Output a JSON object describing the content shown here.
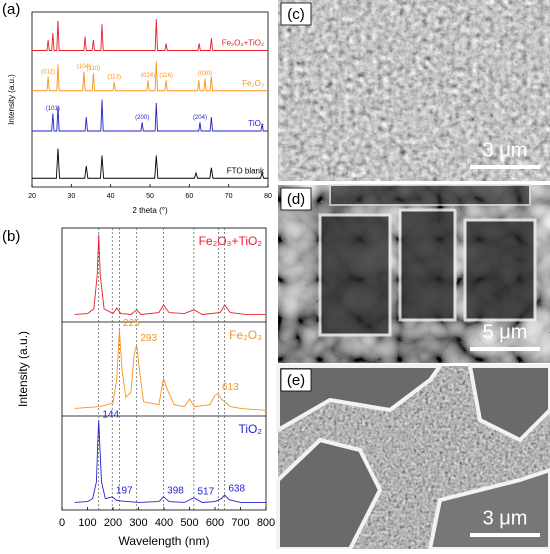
{
  "chart_data": [
    {
      "type": "line",
      "label": "(a)",
      "x_label": "2 theta (°)",
      "y_label": "Intensity (a.u.)",
      "xlim": [
        20,
        80
      ],
      "xticks": [
        20,
        30,
        40,
        50,
        60,
        70,
        80
      ],
      "ylim": [
        0,
        100
      ],
      "series": [
        {
          "name": "FTO blank",
          "color": "#000000",
          "x": [
            20,
            26.2,
            26.6,
            27,
            33.4,
            33.8,
            34.2,
            37.4,
            37.8,
            38.2,
            51.2,
            51.6,
            52,
            61.3,
            61.7,
            62.1,
            65.2,
            65.6,
            66,
            78.1,
            78.5,
            78.9,
            80
          ],
          "values": [
            5,
            5,
            22,
            5,
            5,
            12,
            5,
            5,
            18,
            5,
            5,
            18,
            5,
            5,
            8,
            5,
            5,
            11,
            5,
            5,
            8,
            5,
            5
          ],
          "annotations": []
        },
        {
          "name": "TiO₂",
          "color": "#2323d0",
          "x": [
            20,
            25,
            25.3,
            25.6,
            26.3,
            26.6,
            26.9,
            33.5,
            33.8,
            34.1,
            37.5,
            37.8,
            38.1,
            47.7,
            48,
            48.3,
            51.3,
            51.6,
            51.9,
            62.4,
            62.7,
            63,
            65.3,
            65.6,
            65.9,
            78.2,
            78.5,
            78.8,
            80
          ],
          "values": [
            32,
            32,
            42,
            32,
            32,
            46,
            32,
            32,
            40,
            32,
            32,
            50,
            32,
            32,
            37,
            32,
            32,
            48,
            32,
            32,
            37,
            32,
            32,
            40,
            32,
            32,
            36,
            32,
            32
          ],
          "annotations": [
            {
              "x": 25.3,
              "text": "(101)"
            },
            {
              "x": 48,
              "text": "(200)"
            },
            {
              "x": 62.7,
              "text": "(204)"
            }
          ]
        },
        {
          "name": "Fe₂O₃",
          "color": "#f7941d",
          "x": [
            20,
            23.8,
            24.1,
            24.4,
            26.3,
            26.6,
            26.9,
            32.9,
            33.2,
            33.5,
            35.3,
            35.6,
            35.9,
            40.6,
            40.9,
            41.2,
            49.2,
            49.5,
            49.8,
            51.3,
            51.6,
            51.9,
            53.8,
            54.1,
            54.4,
            62.1,
            62.4,
            62.7,
            63.7,
            64,
            64.3,
            65.3,
            65.6,
            65.9,
            80
          ],
          "values": [
            55,
            55,
            63,
            55,
            55,
            70,
            55,
            55,
            66,
            55,
            55,
            65,
            55,
            55,
            60,
            55,
            55,
            61,
            55,
            55,
            72,
            55,
            55,
            61,
            55,
            55,
            61,
            55,
            55,
            62,
            55,
            55,
            63,
            55,
            55
          ],
          "annotations": [
            {
              "x": 24.1,
              "text": "(012)"
            },
            {
              "x": 33.2,
              "text": "(104)"
            },
            {
              "x": 35.6,
              "text": "(110)"
            },
            {
              "x": 40.9,
              "text": "(113)"
            },
            {
              "x": 49.5,
              "text": "(024)"
            },
            {
              "x": 54.1,
              "text": "(116)"
            },
            {
              "x": 64,
              "text": "(030)"
            }
          ]
        },
        {
          "name": "Fe₂O₃+TiO₂",
          "color": "#e8202a",
          "x": [
            20,
            23.8,
            24.1,
            24.4,
            25,
            25.3,
            25.6,
            26.3,
            26.6,
            26.9,
            33.2,
            33.5,
            33.8,
            35.3,
            35.6,
            35.9,
            37.5,
            37.8,
            38.1,
            51.3,
            51.6,
            51.9,
            53.8,
            54.1,
            54.4,
            62.2,
            62.5,
            62.8,
            65.3,
            65.6,
            65.9,
            80
          ],
          "values": [
            78,
            78,
            84,
            78,
            78,
            88,
            78,
            78,
            95,
            78,
            78,
            86,
            78,
            78,
            84,
            78,
            78,
            93,
            78,
            78,
            96,
            78,
            78,
            82,
            78,
            78,
            82,
            78,
            78,
            85,
            78,
            78
          ],
          "annotations": []
        }
      ]
    },
    {
      "type": "line",
      "label": "(b)",
      "x_label": "Wavelength (nm)",
      "y_label": "Intensity (a.u.)",
      "xlim": [
        0,
        800
      ],
      "xticks": [
        0,
        100,
        200,
        300,
        400,
        500,
        600,
        700,
        800
      ],
      "ylim": [
        0,
        300
      ],
      "series": [
        {
          "name": "TiO₂",
          "color": "#2323d0",
          "x": [
            50,
            100,
            120,
            135,
            140,
            144,
            148,
            155,
            170,
            197,
            215,
            300,
            380,
            398,
            420,
            480,
            517,
            550,
            600,
            625,
            638,
            655,
            700,
            800
          ],
          "values": [
            8,
            9,
            12,
            30,
            70,
            95,
            70,
            30,
            12,
            14,
            10,
            8,
            9,
            14,
            9,
            8,
            13,
            8,
            9,
            12,
            16,
            11,
            8,
            8
          ],
          "annotations": [
            {
              "x": 144,
              "text": "144"
            },
            {
              "x": 197,
              "text": "197"
            },
            {
              "x": 398,
              "text": "398"
            },
            {
              "x": 517,
              "text": "517"
            },
            {
              "x": 638,
              "text": "638"
            }
          ]
        },
        {
          "name": "Fe₂O₃",
          "color": "#f7941d",
          "x": [
            50,
            150,
            200,
            215,
            225,
            235,
            250,
            270,
            283,
            293,
            303,
            320,
            380,
            398,
            410,
            440,
            480,
            500,
            520,
            580,
            600,
            613,
            625,
            660,
            700,
            800
          ],
          "values": [
            108,
            110,
            114,
            140,
            192,
            150,
            120,
            125,
            165,
            176,
            150,
            115,
            112,
            140,
            130,
            112,
            110,
            118,
            110,
            112,
            122,
            124,
            118,
            110,
            108,
            106
          ],
          "annotations": [
            {
              "x": 225,
              "text": "225"
            },
            {
              "x": 293,
              "text": "293"
            },
            {
              "x": 613,
              "text": "613"
            }
          ]
        },
        {
          "name": "Fe₂O₃+TiO₂",
          "color": "#e8202a",
          "x": [
            50,
            100,
            125,
            138,
            144,
            150,
            165,
            200,
            215,
            230,
            270,
            293,
            310,
            380,
            398,
            420,
            480,
            517,
            550,
            620,
            638,
            660,
            720,
            800
          ],
          "values": [
            208,
            209,
            214,
            250,
            293,
            250,
            214,
            209,
            215,
            209,
            208,
            213,
            208,
            210,
            218,
            210,
            209,
            213,
            208,
            210,
            218,
            210,
            208,
            208
          ],
          "annotations": []
        }
      ]
    }
  ],
  "images": [
    {
      "label": "(c)",
      "scale_bar": "3 μm"
    },
    {
      "label": "(d)",
      "scale_bar": "5 μm"
    },
    {
      "label": "(e)",
      "scale_bar": "3 μm"
    }
  ]
}
